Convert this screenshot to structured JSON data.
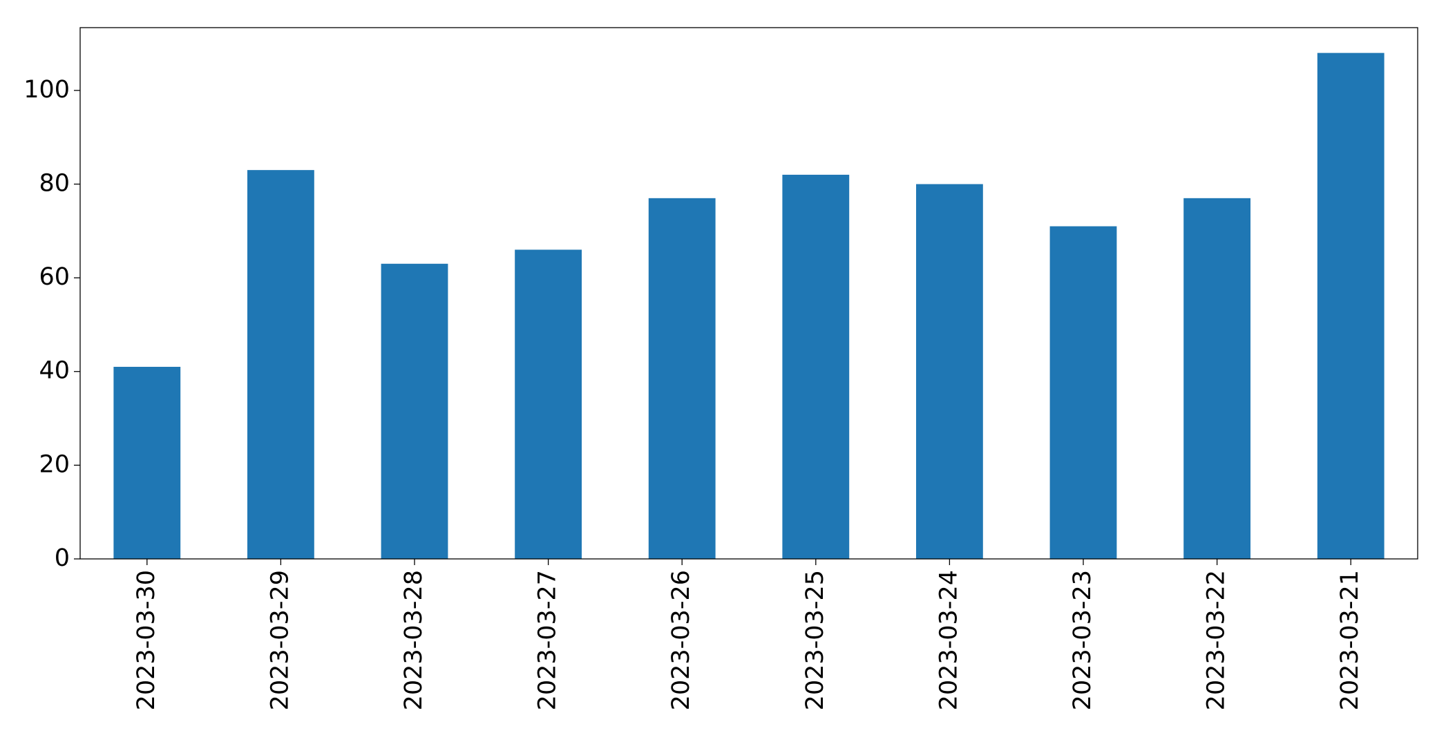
{
  "chart_data": {
    "type": "bar",
    "categories": [
      "2023-03-30",
      "2023-03-29",
      "2023-03-28",
      "2023-03-27",
      "2023-03-26",
      "2023-03-25",
      "2023-03-24",
      "2023-03-23",
      "2023-03-22",
      "2023-03-21"
    ],
    "values": [
      41,
      83,
      63,
      66,
      77,
      82,
      80,
      71,
      77,
      108
    ],
    "color": "#1f77b4",
    "ylim": [
      0,
      113.4
    ],
    "yticks": [
      0,
      20,
      40,
      60,
      80,
      100
    ],
    "grid": false
  }
}
